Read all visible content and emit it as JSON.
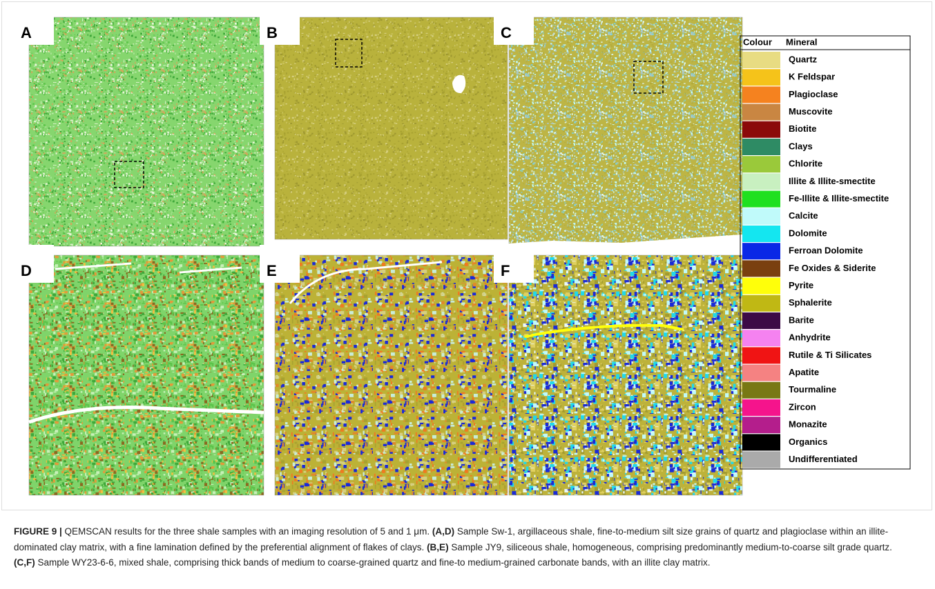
{
  "panels": [
    "A",
    "B",
    "C",
    "D",
    "E",
    "F"
  ],
  "legend": {
    "header": [
      "Colour",
      "Mineral"
    ],
    "items": [
      {
        "name": "Quartz",
        "color": "#e8dc82"
      },
      {
        "name": "K Feldspar",
        "color": "#f5c31a"
      },
      {
        "name": "Plagioclase",
        "color": "#f5821f"
      },
      {
        "name": "Muscovite",
        "color": "#c98642"
      },
      {
        "name": "Biotite",
        "color": "#8b0a0a"
      },
      {
        "name": "Clays",
        "color": "#2e8b64"
      },
      {
        "name": "Chlorite",
        "color": "#9ac93a"
      },
      {
        "name": "Illite & Illite-smectite",
        "color": "#c8f0c0"
      },
      {
        "name": "Fe-Illite & Illite-smectite",
        "color": "#1fe01f"
      },
      {
        "name": "Calcite",
        "color": "#c0fafa"
      },
      {
        "name": "Dolomite",
        "color": "#14e6f0"
      },
      {
        "name": "Ferroan Dolomite",
        "color": "#0a28e6"
      },
      {
        "name": "Fe Oxides & Siderite",
        "color": "#7a4010"
      },
      {
        "name": "Pyrite",
        "color": "#ffff0a"
      },
      {
        "name": "Sphalerite",
        "color": "#c0b814"
      },
      {
        "name": "Barite",
        "color": "#3c0a46"
      },
      {
        "name": "Anhydrite",
        "color": "#f582f0"
      },
      {
        "name": "Rutile & Ti Silicates",
        "color": "#f01414"
      },
      {
        "name": "Apatite",
        "color": "#f58282"
      },
      {
        "name": "Tourmaline",
        "color": "#787814"
      },
      {
        "name": "Zircon",
        "color": "#f5148c"
      },
      {
        "name": "Monazite",
        "color": "#b41e8c"
      },
      {
        "name": "Organics",
        "color": "#000000"
      },
      {
        "name": "Undifferentiated",
        "color": "#aaaaaa"
      }
    ]
  },
  "caption": {
    "label": "FIGURE 9 |",
    "intro": " QEMSCAN results for the three shale samples with an imaging resolution of 5 and 1 μm. ",
    "parts": [
      {
        "ref": "(A,D)",
        "text": " Sample Sw-1, argillaceous shale, fine-to-medium silt size grains of quartz and plagioclase within an illite-dominated clay matrix, with a fine lamination defined by the preferential alignment of flakes of clays. "
      },
      {
        "ref": "(B,E)",
        "text": " Sample JY9, siliceous shale, homogeneous, comprising predominantly medium-to-coarse silt grade quartz. "
      },
      {
        "ref": "(C,F)",
        "text": " Sample WY23-6-6, mixed shale, comprising thick bands of medium to coarse-grained quartz and fine-to medium-grained carbonate bands, with an illite clay matrix."
      }
    ]
  }
}
